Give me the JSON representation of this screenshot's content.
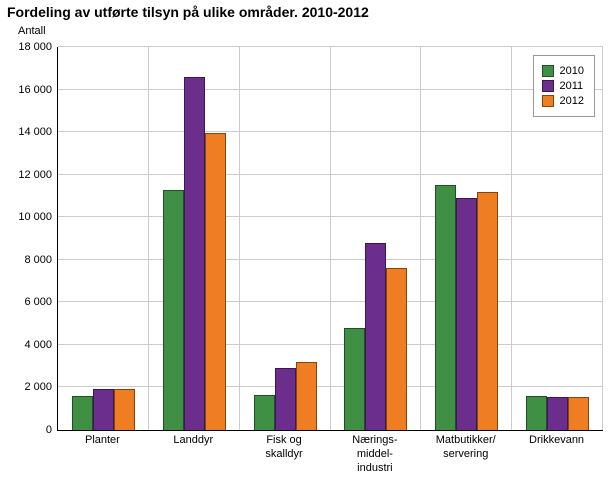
{
  "chart_data": {
    "type": "bar",
    "title": "Fordeling av utførte tilsyn på ulike områder. 2010-2012",
    "ylabel": "Antall",
    "xlabel": "",
    "ylim": [
      0,
      18000
    ],
    "grid": true,
    "legend_position": "top-right",
    "ytick_values": [
      0,
      2000,
      4000,
      6000,
      8000,
      10000,
      12000,
      14000,
      16000,
      18000
    ],
    "ytick_labels": [
      "0",
      "2 000",
      "4 000",
      "6 000",
      "8 000",
      "10 000",
      "12 000",
      "14 000",
      "16 000",
      "18 000"
    ],
    "categories": [
      "Planter",
      "Landdyr",
      "Fisk og\nskalldyr",
      "Nærings-\nmiddel-\nindustri",
      "Matbutikker/\nservering",
      "Drikkevann"
    ],
    "series": [
      {
        "name": "2010",
        "color": "#3f8f44",
        "values": [
          1600,
          11300,
          1650,
          4800,
          11500,
          1600
        ]
      },
      {
        "name": "2011",
        "color": "#6c2e8c",
        "values": [
          1950,
          16600,
          2900,
          8800,
          10900,
          1550
        ]
      },
      {
        "name": "2012",
        "color": "#ef7d21",
        "values": [
          1950,
          13950,
          3200,
          7600,
          11200,
          1550
        ]
      }
    ]
  }
}
